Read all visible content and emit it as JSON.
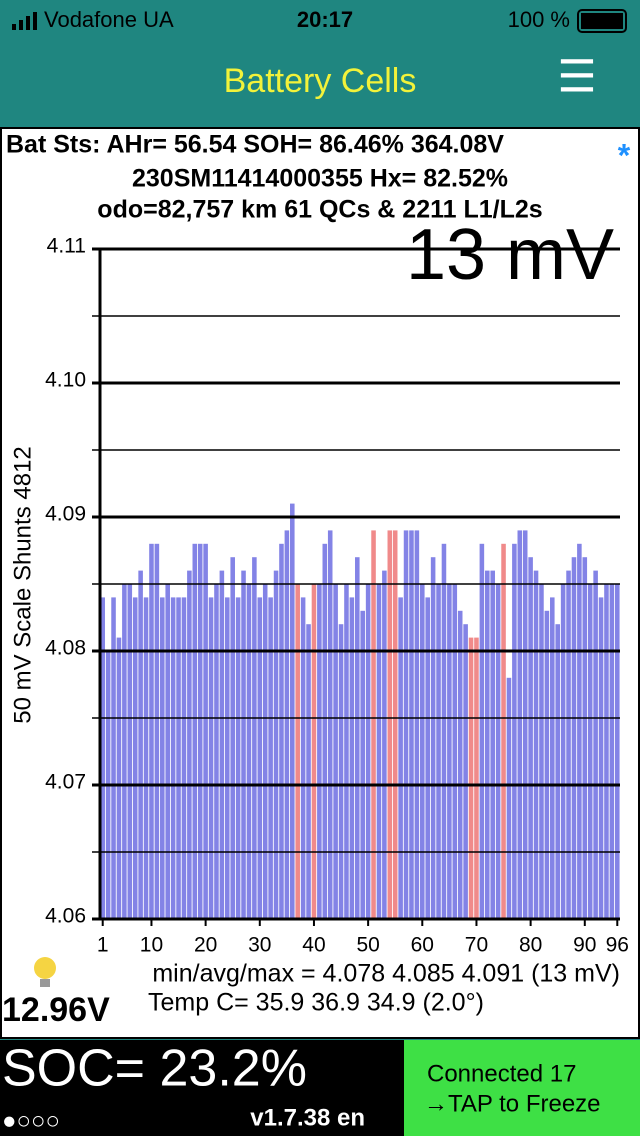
{
  "status_bar": {
    "carrier": "Vodafone UA",
    "time": "20:17",
    "battery": "100 %"
  },
  "nav": {
    "title": "Battery Cells",
    "menu": "☰"
  },
  "header": {
    "line1": "Bat Sts: AHr= 56.54 SOH= 86.46% 364.08V",
    "star": "*",
    "line2": "230SM11414000355   Hx= 82.52%",
    "line3": "odo=82,757 km 61 QCs & 2211 L1/L2s"
  },
  "chart_data": {
    "type": "bar",
    "annotation": "13 mV",
    "y_label": "50 mV Scale   Shunts 4812",
    "x": [
      1,
      2,
      3,
      4,
      5,
      6,
      7,
      8,
      9,
      10,
      11,
      12,
      13,
      14,
      15,
      16,
      17,
      18,
      19,
      20,
      21,
      22,
      23,
      24,
      25,
      26,
      27,
      28,
      29,
      30,
      31,
      32,
      33,
      34,
      35,
      36,
      37,
      38,
      39,
      40,
      41,
      42,
      43,
      44,
      45,
      46,
      47,
      48,
      49,
      50,
      51,
      52,
      53,
      54,
      55,
      56,
      57,
      58,
      59,
      60,
      61,
      62,
      63,
      64,
      65,
      66,
      67,
      68,
      69,
      70,
      71,
      72,
      73,
      74,
      75,
      76,
      77,
      78,
      79,
      80,
      81,
      82,
      83,
      84,
      85,
      86,
      87,
      88,
      89,
      90,
      91,
      92,
      93,
      94,
      95,
      96
    ],
    "values": [
      4.084,
      4.08,
      4.084,
      4.081,
      4.085,
      4.085,
      4.084,
      4.086,
      4.084,
      4.088,
      4.088,
      4.084,
      4.085,
      4.084,
      4.084,
      4.084,
      4.086,
      4.088,
      4.088,
      4.088,
      4.084,
      4.085,
      4.086,
      4.084,
      4.087,
      4.084,
      4.086,
      4.085,
      4.087,
      4.084,
      4.085,
      4.084,
      4.086,
      4.088,
      4.089,
      4.091,
      4.085,
      4.084,
      4.082,
      4.085,
      4.085,
      4.088,
      4.089,
      4.085,
      4.082,
      4.085,
      4.084,
      4.087,
      4.083,
      4.085,
      4.089,
      4.085,
      4.086,
      4.089,
      4.089,
      4.084,
      4.089,
      4.089,
      4.089,
      4.085,
      4.084,
      4.087,
      4.085,
      4.088,
      4.085,
      4.085,
      4.083,
      4.082,
      4.081,
      4.081,
      4.088,
      4.086,
      4.086,
      4.085,
      4.088,
      4.078,
      4.088,
      4.089,
      4.089,
      4.087,
      4.086,
      4.085,
      4.083,
      4.084,
      4.082,
      4.085,
      4.086,
      4.087,
      4.088,
      4.087,
      4.085,
      4.086,
      4.084,
      4.085,
      4.085,
      4.085
    ],
    "color": "#8383e6",
    "bar_colors": [
      "#8383e6",
      "#8383e6",
      "#8383e6",
      "#8383e6",
      "#8383e6",
      "#8383e6",
      "#8383e6",
      "#8383e6",
      "#8383e6",
      "#8383e6",
      "#8383e6",
      "#8383e6",
      "#8383e6",
      "#8383e6",
      "#8383e6",
      "#8383e6",
      "#8383e6",
      "#8383e6",
      "#8383e6",
      "#8383e6",
      "#8383e6",
      "#8383e6",
      "#8383e6",
      "#8383e6",
      "#8383e6",
      "#8383e6",
      "#8383e6",
      "#8383e6",
      "#8383e6",
      "#8383e6",
      "#8383e6",
      "#8383e6",
      "#8383e6",
      "#8383e6",
      "#8383e6",
      "#8383e6",
      "#f08a8a",
      "#8383e6",
      "#8383e6",
      "#f08a8a",
      "#8383e6",
      "#8383e6",
      "#8383e6",
      "#8383e6",
      "#8383e6",
      "#8383e6",
      "#8383e6",
      "#8383e6",
      "#8383e6",
      "#8383e6",
      "#f08a8a",
      "#8383e6",
      "#8383e6",
      "#f08a8a",
      "#f08a8a",
      "#8383e6",
      "#8383e6",
      "#8383e6",
      "#8383e6",
      "#8383e6",
      "#8383e6",
      "#8383e6",
      "#8383e6",
      "#8383e6",
      "#8383e6",
      "#8383e6",
      "#8383e6",
      "#8383e6",
      "#f08a8a",
      "#f08a8a",
      "#8383e6",
      "#8383e6",
      "#8383e6",
      "#8383e6",
      "#f08a8a",
      "#8383e6",
      "#8383e6",
      "#8383e6",
      "#8383e6",
      "#8383e6",
      "#8383e6",
      "#8383e6",
      "#8383e6",
      "#8383e6",
      "#8383e6",
      "#8383e6",
      "#8383e6",
      "#8383e6",
      "#8383e6",
      "#8383e6",
      "#8383e6",
      "#8383e6",
      "#8383e6",
      "#8383e6",
      "#8383e6",
      "#8383e6"
    ],
    "xlim": [
      0.5,
      96.5
    ],
    "xticks": [
      1,
      10,
      20,
      30,
      40,
      50,
      60,
      70,
      80,
      90,
      96
    ],
    "ylim": [
      4.06,
      4.11
    ],
    "yticks": [
      4.06,
      4.07,
      4.08,
      4.09,
      {
        "value": 4.1,
        "label": "4.10"
      },
      4.11
    ],
    "minor_yticks": [
      4.065,
      4.075,
      4.085,
      4.095,
      4.105
    ],
    "grid": true
  },
  "footer": {
    "stats": "min/avg/max = 4.078 4.085 4.091  (13 mV)",
    "pack_voltage": "12.96V",
    "temp": "Temp C= 35.9  36.9  34.9  (2.0°)",
    "soc": "SOC= 23.2%",
    "dots": "●○○○",
    "version": "v1.7.38 en",
    "connected": "Connected 17",
    "tap": "→TAP to Freeze"
  }
}
